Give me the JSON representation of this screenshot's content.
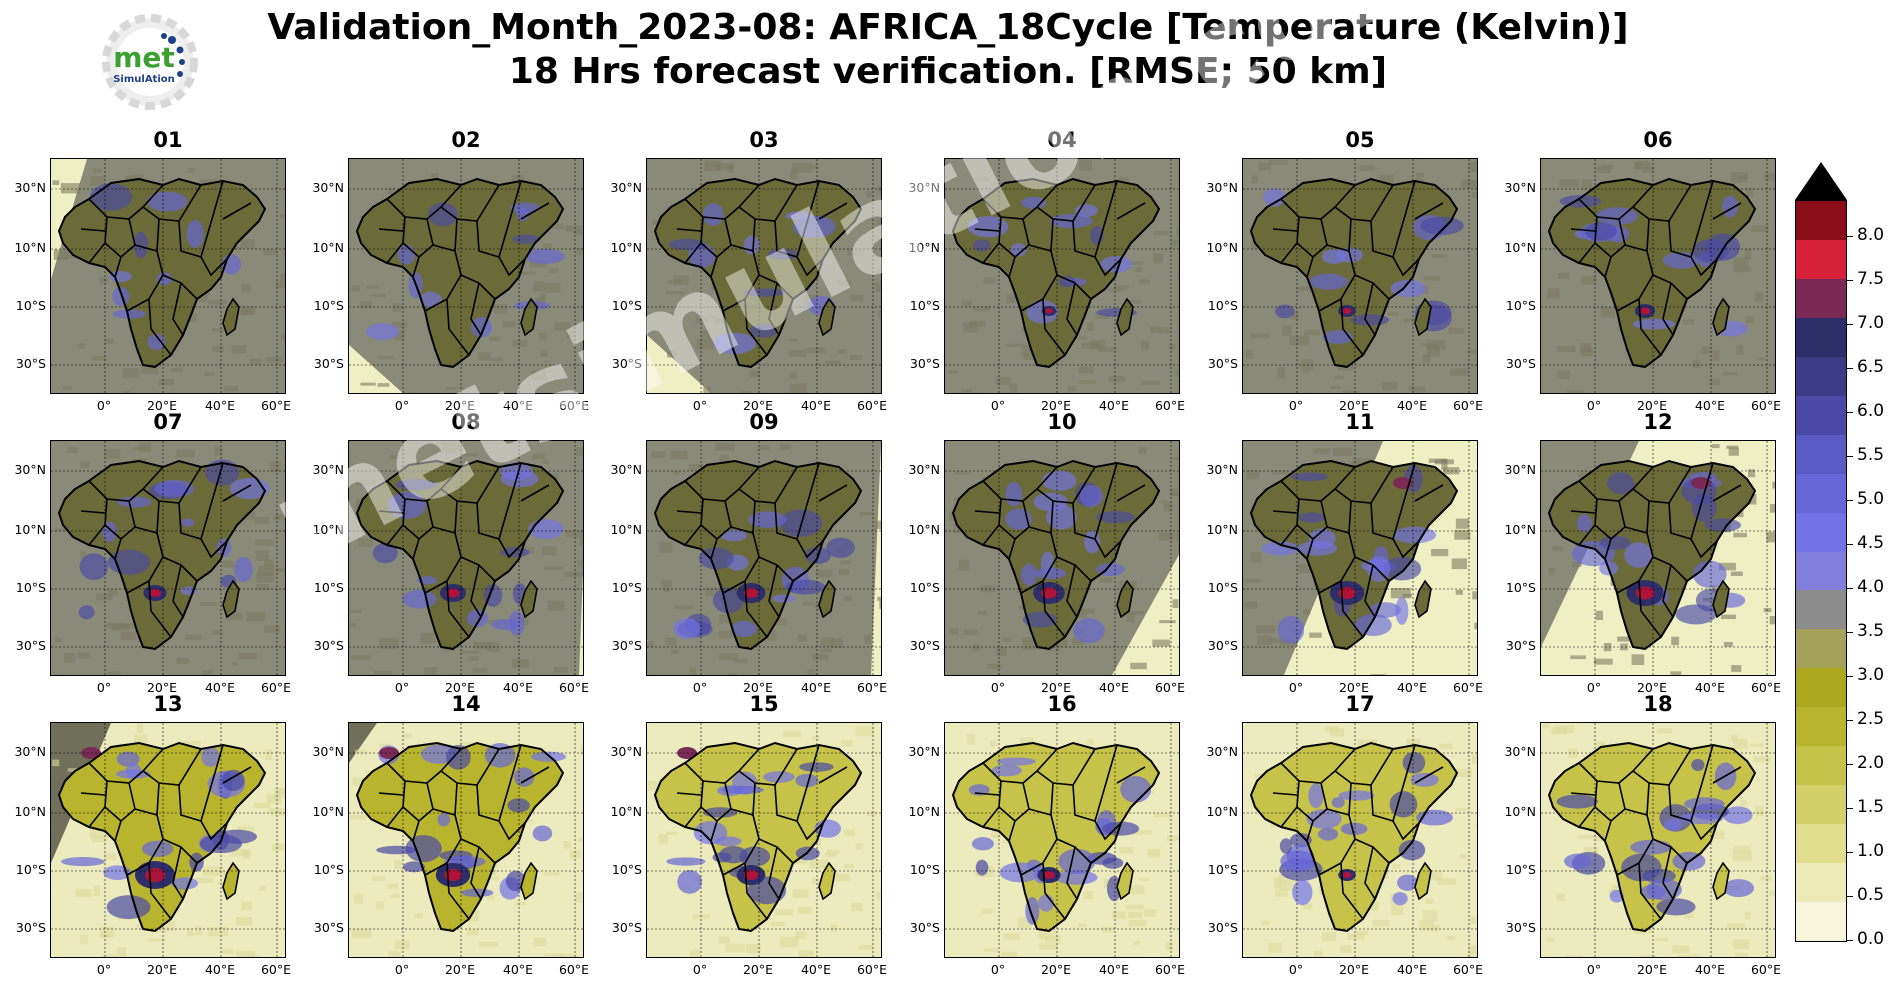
{
  "title_line1": "Validation_Month_2023-08: AFRICA_18Cycle [Temperature (Kelvin)]",
  "title_line2": "18 Hrs forecast verification.  [RMSE; 50 km]",
  "logo": {
    "text_main": "met",
    "text_sub": "SimulAtion"
  },
  "watermark": "metsimulation.com",
  "panels": [
    "01",
    "02",
    "03",
    "04",
    "05",
    "06",
    "07",
    "08",
    "09",
    "10",
    "11",
    "12",
    "13",
    "14",
    "15",
    "16",
    "17",
    "18"
  ],
  "lat_labels": [
    "30°N",
    "10°N",
    "10°S",
    "30°S"
  ],
  "lon_labels": [
    "0°",
    "20°E",
    "40°E",
    "60°E"
  ],
  "colorbar": {
    "labels": [
      "8.0",
      "7.5",
      "7.0",
      "6.5",
      "6.0",
      "5.5",
      "5.0",
      "4.5",
      "4.0",
      "3.5",
      "3.0",
      "2.5",
      "2.0",
      "1.5",
      "1.0",
      "0.5",
      "0.0"
    ],
    "colors": [
      "#f7f6dd",
      "#ecebb8",
      "#e1df8f",
      "#d3d06a",
      "#c6c24a",
      "#b9b42d",
      "#aba81e",
      "#a6a15a",
      "#8c8c8c",
      "#8080dc",
      "#7373e8",
      "#6666d8",
      "#5a5ac4",
      "#4a4aa6",
      "#3b3b86",
      "#2e2e6a",
      "#7a2a55",
      "#d6203a",
      "#8a0e1a"
    ]
  },
  "colors": {
    "land_dark": "#6b6b3a",
    "ocean_grey": "#8a8a78",
    "ocean_light": "#efefc4",
    "anomaly_red": "#b0133a"
  }
}
